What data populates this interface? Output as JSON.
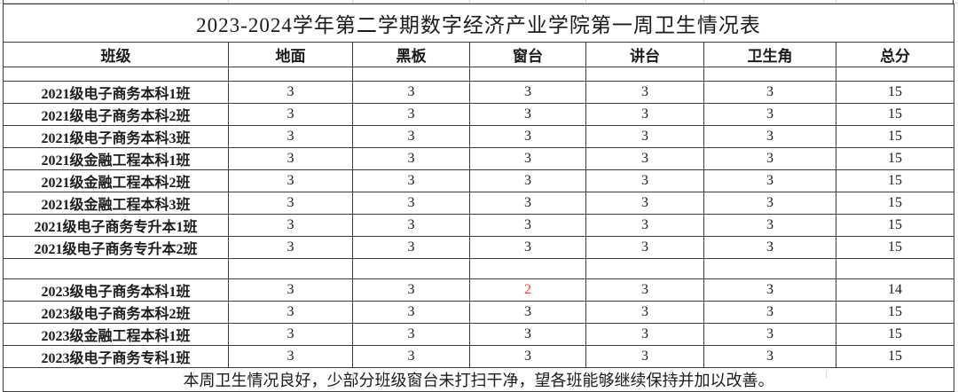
{
  "table": {
    "title": "2023-2024学年第二学期数字经济产业学院第一周卫生情况表",
    "headers": [
      "班级",
      "地面",
      "黑板",
      "窗台",
      "讲台",
      "卫生角",
      "总分"
    ],
    "groups": [
      {
        "name": "grade-2021",
        "rows": [
          {
            "cells": [
              "2021级电子商务本科1班",
              "3",
              "3",
              "3",
              "3",
              "3",
              "15"
            ]
          },
          {
            "cells": [
              "2021级电子商务本科2班",
              "3",
              "3",
              "3",
              "3",
              "3",
              "15"
            ]
          },
          {
            "cells": [
              "2021级电子商务本科3班",
              "3",
              "3",
              "3",
              "3",
              "3",
              "15"
            ]
          },
          {
            "cells": [
              "2021级金融工程本科1班",
              "3",
              "3",
              "3",
              "3",
              "3",
              "15"
            ]
          },
          {
            "cells": [
              "2021级金融工程本科2班",
              "3",
              "3",
              "3",
              "3",
              "3",
              "15"
            ]
          },
          {
            "cells": [
              "2021级金融工程本科3班",
              "3",
              "3",
              "3",
              "3",
              "3",
              "15"
            ]
          },
          {
            "cells": [
              "2021级电子商务专升本1班",
              "3",
              "3",
              "3",
              "3",
              "3",
              "15"
            ]
          },
          {
            "cells": [
              "2021级电子商务专升本2班",
              "3",
              "3",
              "3",
              "3",
              "3",
              "15"
            ]
          }
        ]
      },
      {
        "name": "grade-2023",
        "rows": [
          {
            "cells": [
              "2023级电子商务本科1班",
              "3",
              "3",
              "2",
              "3",
              "3",
              "14"
            ],
            "highlight": {
              "col": 3
            }
          },
          {
            "cells": [
              "2023级电子商务本科2班",
              "3",
              "3",
              "3",
              "3",
              "3",
              "15"
            ]
          },
          {
            "cells": [
              "2023级金融工程本科1班",
              "3",
              "3",
              "3",
              "3",
              "3",
              "15"
            ]
          },
          {
            "cells": [
              "2023级电子商务专科1班",
              "3",
              "3",
              "3",
              "3",
              "3",
              "15"
            ]
          }
        ]
      }
    ],
    "footer_note": "本周卫生情况良好，少部分班级窗台未打扫干净，望各班能够继续保持并加以改善。"
  },
  "colors": {
    "highlight_red": "#f5372b",
    "border_dark": "#3b3b3b",
    "gridline_light": "#cfcfcf",
    "background": "#ffffff"
  }
}
